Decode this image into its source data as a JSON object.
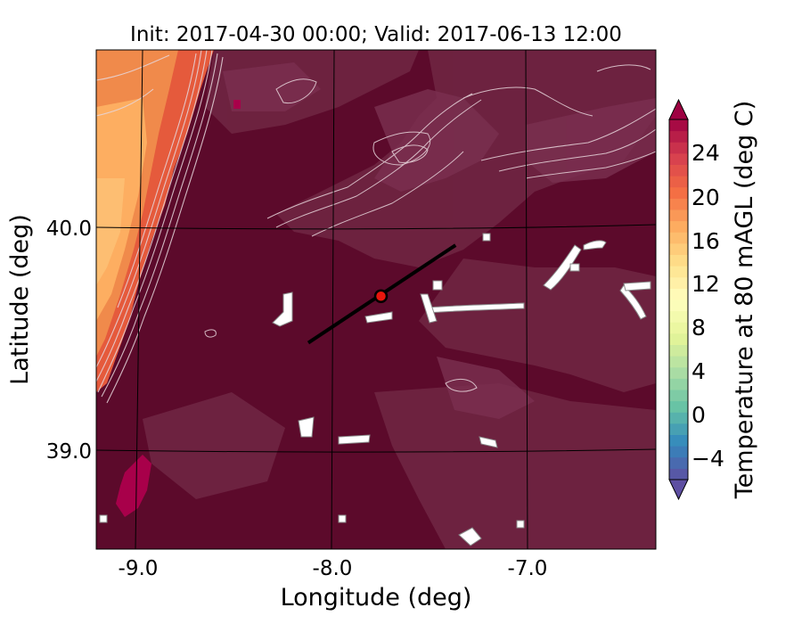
{
  "title": "Init: 2017-04-30 00:00; Valid: 2017-06-13 12:00",
  "map": {
    "xlabel": "Longitude (deg)",
    "ylabel": "Latitude (deg)",
    "x_ticks": [
      "-9.0",
      "-8.0",
      "-7.0"
    ],
    "y_ticks": [
      "40.0",
      "39.0"
    ],
    "lon_range": [
      -9.2,
      -6.35
    ],
    "lat_range": [
      38.55,
      40.8
    ],
    "transect": {
      "start": [
        -8.12,
        39.48
      ],
      "end": [
        -7.37,
        39.92
      ]
    },
    "marker": {
      "lon": -7.75,
      "lat": 39.69,
      "fill": "#e8160d",
      "edge": "#000000"
    },
    "field_colors": {
      "background": "#5c0a2b",
      "ridge": "#6f2542",
      "warm": "#e55a3c",
      "warmest": "#fdae61"
    }
  },
  "colorbar": {
    "label": "Temperature at 80 mAGL (deg C)",
    "ticks": [
      "24",
      "20",
      "16",
      "12",
      "8",
      "4",
      "0",
      "−4"
    ],
    "min": -6,
    "max": 26
  }
}
